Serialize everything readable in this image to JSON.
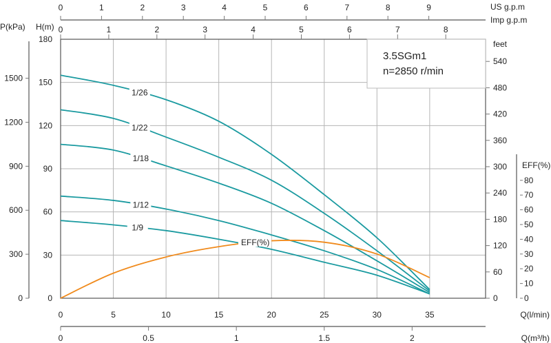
{
  "chart_data": {
    "type": "line",
    "title": "3.5SGm1",
    "subtitle": "n=2850 r/min",
    "xlabel": "Q(l/min)",
    "ylabel": "H(m)",
    "xlim": [
      0,
      40.3
    ],
    "ylim": [
      0,
      180
    ],
    "x_ticks": [
      5,
      10,
      15,
      20,
      25,
      30,
      35
    ],
    "y_ticks": [
      0,
      30,
      60,
      90,
      120,
      150,
      180
    ],
    "grid": true,
    "secondary_axes": {
      "us_gpm": {
        "label": "US  g.p.m",
        "ticks": [
          0,
          1,
          2,
          3,
          4,
          5,
          6,
          7,
          8,
          9
        ]
      },
      "imp_gpm": {
        "label": "Imp  g.p.m",
        "ticks": [
          0,
          1,
          2,
          3,
          4,
          5,
          6,
          7,
          8
        ]
      },
      "m3h": {
        "label": "Q(m³/h)",
        "ticks": [
          "0",
          "0.5",
          "1",
          "1.5",
          "2"
        ]
      },
      "kpa": {
        "label": "P(kPa)",
        "ticks": [
          0,
          300,
          600,
          900,
          1200,
          1500
        ]
      },
      "feet": {
        "label": "feet",
        "ticks": [
          0,
          60,
          120,
          180,
          240,
          300,
          360,
          420,
          480,
          540
        ]
      },
      "eff": {
        "label": "EFF(%)",
        "ticks": [
          0,
          10,
          20,
          30,
          40,
          50,
          60,
          70,
          80
        ]
      }
    },
    "x": [
      0,
      5,
      10,
      15,
      20,
      25,
      30,
      35
    ],
    "series": [
      {
        "name": "1/26",
        "values": [
          155,
          148,
          138,
          123,
          100,
          72,
          42,
          6
        ]
      },
      {
        "name": "1/22",
        "values": [
          131,
          125,
          112,
          98,
          82,
          59,
          33,
          5
        ]
      },
      {
        "name": "1/18",
        "values": [
          107,
          103,
          92,
          80,
          66,
          47,
          26,
          4
        ]
      },
      {
        "name": "1/12",
        "values": [
          71,
          68,
          62,
          54,
          44,
          33,
          20,
          3
        ]
      },
      {
        "name": "1/9",
        "values": [
          54,
          51,
          47,
          41,
          34,
          25,
          16,
          3
        ]
      }
    ],
    "efficiency": {
      "name": "EFF(%)",
      "unit": "%",
      "values": [
        0,
        17,
        28,
        35,
        39,
        38,
        30,
        14
      ]
    },
    "colors": {
      "pump": "#1a9aa0",
      "eff": "#f08a1c"
    }
  }
}
